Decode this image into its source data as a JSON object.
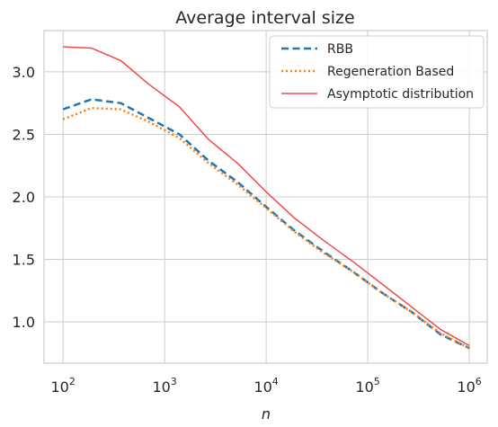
{
  "chart_data": {
    "type": "line",
    "title": "Average interval size",
    "xlabel": "n",
    "ylabel": "",
    "xscale": "log",
    "xlim": [
      65,
      1500000
    ],
    "ylim": [
      0.67,
      3.33
    ],
    "x_ticks": [
      {
        "value": 100,
        "base": "10",
        "exp": "2"
      },
      {
        "value": 1000,
        "base": "10",
        "exp": "3"
      },
      {
        "value": 10000,
        "base": "10",
        "exp": "4"
      },
      {
        "value": 100000,
        "base": "10",
        "exp": "5"
      },
      {
        "value": 1000000,
        "base": "10",
        "exp": "6"
      }
    ],
    "y_ticks": [
      {
        "value": 1.0,
        "label": "1.0"
      },
      {
        "value": 1.5,
        "label": "1.5"
      },
      {
        "value": 2.0,
        "label": "2.0"
      },
      {
        "value": 2.5,
        "label": "2.5"
      },
      {
        "value": 3.0,
        "label": "3.0"
      }
    ],
    "grid": true,
    "legend_position": "top-right",
    "series": [
      {
        "name": "RBB",
        "color": "#1f77b4",
        "style": "dashed",
        "x": [
          100,
          190,
          370,
          700,
          1400,
          2700,
          5200,
          10000,
          19000,
          37000,
          72000,
          140000,
          270000,
          520000,
          1000000
        ],
        "y": [
          2.7,
          2.78,
          2.75,
          2.63,
          2.5,
          2.29,
          2.12,
          1.92,
          1.73,
          1.56,
          1.4,
          1.23,
          1.08,
          0.9,
          0.79
        ]
      },
      {
        "name": "Regeneration Based",
        "color": "#ff7f0e",
        "style": "dotted",
        "x": [
          100,
          190,
          370,
          700,
          1400,
          2700,
          5200,
          10000,
          19000,
          37000,
          72000,
          140000,
          270000,
          520000,
          1000000
        ],
        "y": [
          2.62,
          2.71,
          2.7,
          2.6,
          2.47,
          2.27,
          2.1,
          1.91,
          1.72,
          1.55,
          1.4,
          1.23,
          1.08,
          0.91,
          0.79
        ]
      },
      {
        "name": "Asymptotic distribution",
        "color": "#f04a4a",
        "style": "solid",
        "x": [
          100,
          190,
          370,
          700,
          1400,
          2700,
          5200,
          10000,
          19000,
          37000,
          72000,
          140000,
          270000,
          520000,
          1000000
        ],
        "y": [
          3.2,
          3.19,
          3.09,
          2.9,
          2.72,
          2.46,
          2.27,
          2.04,
          1.83,
          1.65,
          1.48,
          1.3,
          1.12,
          0.94,
          0.81
        ]
      }
    ]
  }
}
